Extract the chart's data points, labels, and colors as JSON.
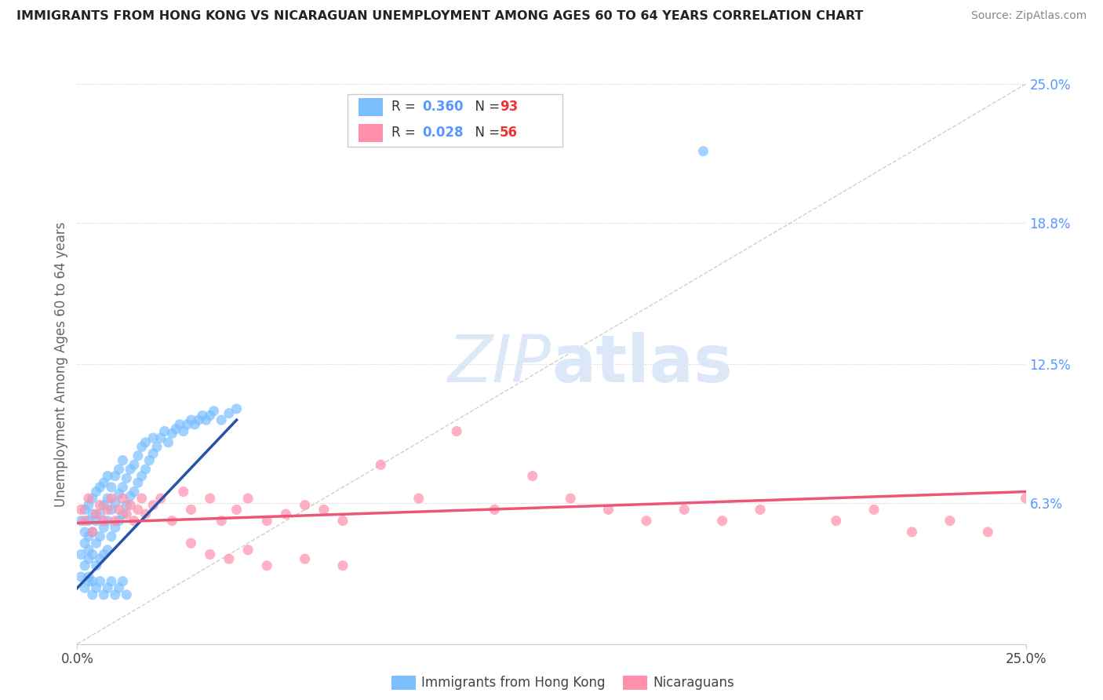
{
  "title": "IMMIGRANTS FROM HONG KONG VS NICARAGUAN UNEMPLOYMENT AMONG AGES 60 TO 64 YEARS CORRELATION CHART",
  "source": "Source: ZipAtlas.com",
  "ylabel": "Unemployment Among Ages 60 to 64 years",
  "xlim": [
    0.0,
    0.25
  ],
  "ylim": [
    0.0,
    0.25
  ],
  "r_hk": 0.36,
  "n_hk": 93,
  "r_nic": 0.028,
  "n_nic": 56,
  "color_hk": "#7bbfff",
  "color_nic": "#ff8fab",
  "color_hk_line": "#2255aa",
  "color_nic_line": "#ee5577",
  "color_ref_line": "#bbbbbb",
  "background_color": "#ffffff",
  "scatter_hk_x": [
    0.001,
    0.001,
    0.001,
    0.002,
    0.002,
    0.002,
    0.002,
    0.003,
    0.003,
    0.003,
    0.003,
    0.003,
    0.003,
    0.004,
    0.004,
    0.004,
    0.004,
    0.004,
    0.005,
    0.005,
    0.005,
    0.005,
    0.006,
    0.006,
    0.006,
    0.006,
    0.007,
    0.007,
    0.007,
    0.007,
    0.008,
    0.008,
    0.008,
    0.008,
    0.009,
    0.009,
    0.009,
    0.01,
    0.01,
    0.01,
    0.011,
    0.011,
    0.011,
    0.012,
    0.012,
    0.012,
    0.013,
    0.013,
    0.014,
    0.014,
    0.015,
    0.015,
    0.016,
    0.016,
    0.017,
    0.017,
    0.018,
    0.018,
    0.019,
    0.02,
    0.02,
    0.021,
    0.022,
    0.023,
    0.024,
    0.025,
    0.026,
    0.027,
    0.028,
    0.029,
    0.03,
    0.031,
    0.032,
    0.033,
    0.034,
    0.035,
    0.036,
    0.038,
    0.04,
    0.042,
    0.002,
    0.003,
    0.004,
    0.005,
    0.006,
    0.007,
    0.008,
    0.009,
    0.01,
    0.011,
    0.012,
    0.013,
    0.165
  ],
  "scatter_hk_y": [
    0.04,
    0.03,
    0.055,
    0.035,
    0.045,
    0.05,
    0.06,
    0.038,
    0.042,
    0.048,
    0.055,
    0.062,
    0.03,
    0.04,
    0.05,
    0.058,
    0.065,
    0.028,
    0.035,
    0.045,
    0.055,
    0.068,
    0.038,
    0.048,
    0.058,
    0.07,
    0.04,
    0.052,
    0.062,
    0.072,
    0.042,
    0.055,
    0.065,
    0.075,
    0.048,
    0.06,
    0.07,
    0.052,
    0.063,
    0.075,
    0.055,
    0.067,
    0.078,
    0.058,
    0.07,
    0.082,
    0.062,
    0.074,
    0.066,
    0.078,
    0.068,
    0.08,
    0.072,
    0.084,
    0.075,
    0.088,
    0.078,
    0.09,
    0.082,
    0.085,
    0.092,
    0.088,
    0.092,
    0.095,
    0.09,
    0.094,
    0.096,
    0.098,
    0.095,
    0.098,
    0.1,
    0.098,
    0.1,
    0.102,
    0.1,
    0.102,
    0.104,
    0.1,
    0.103,
    0.105,
    0.025,
    0.028,
    0.022,
    0.025,
    0.028,
    0.022,
    0.025,
    0.028,
    0.022,
    0.025,
    0.028,
    0.022,
    0.22
  ],
  "scatter_nic_x": [
    0.001,
    0.002,
    0.003,
    0.004,
    0.005,
    0.006,
    0.007,
    0.008,
    0.009,
    0.01,
    0.011,
    0.012,
    0.013,
    0.014,
    0.015,
    0.016,
    0.017,
    0.018,
    0.02,
    0.022,
    0.025,
    0.028,
    0.03,
    0.035,
    0.038,
    0.042,
    0.045,
    0.05,
    0.055,
    0.06,
    0.065,
    0.07,
    0.08,
    0.09,
    0.1,
    0.11,
    0.12,
    0.13,
    0.14,
    0.15,
    0.16,
    0.17,
    0.18,
    0.2,
    0.21,
    0.22,
    0.23,
    0.24,
    0.25,
    0.03,
    0.035,
    0.04,
    0.045,
    0.05,
    0.06,
    0.07
  ],
  "scatter_nic_y": [
    0.06,
    0.055,
    0.065,
    0.05,
    0.058,
    0.062,
    0.055,
    0.06,
    0.065,
    0.055,
    0.06,
    0.065,
    0.058,
    0.062,
    0.055,
    0.06,
    0.065,
    0.058,
    0.062,
    0.065,
    0.055,
    0.068,
    0.06,
    0.065,
    0.055,
    0.06,
    0.065,
    0.055,
    0.058,
    0.062,
    0.06,
    0.055,
    0.08,
    0.065,
    0.095,
    0.06,
    0.075,
    0.065,
    0.06,
    0.055,
    0.06,
    0.055,
    0.06,
    0.055,
    0.06,
    0.05,
    0.055,
    0.05,
    0.065,
    0.045,
    0.04,
    0.038,
    0.042,
    0.035,
    0.038,
    0.035
  ],
  "hk_line_x0": 0.0,
  "hk_line_x1": 0.042,
  "hk_line_y0": 0.025,
  "hk_line_y1": 0.1,
  "nic_line_x0": 0.0,
  "nic_line_x1": 0.25,
  "nic_line_y0": 0.054,
  "nic_line_y1": 0.068
}
